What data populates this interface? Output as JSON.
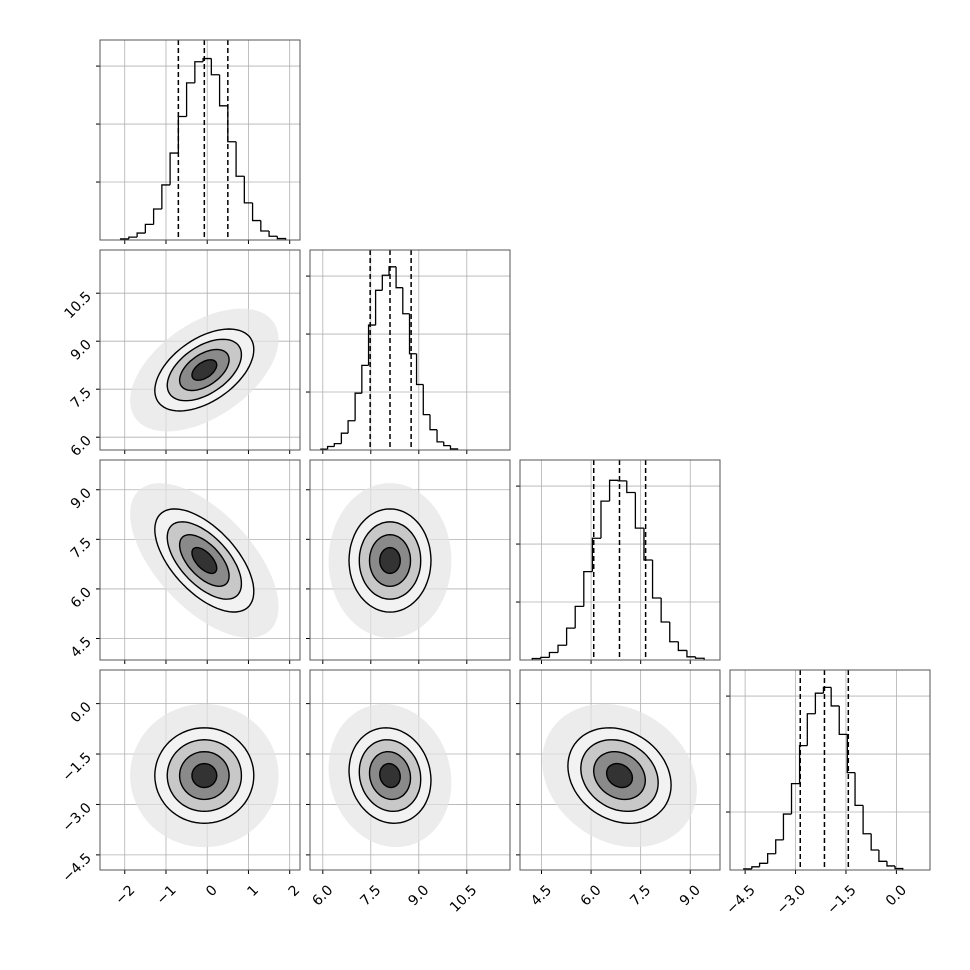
{
  "chart_data": {
    "type": "corner",
    "hist_ylim": [
      0,
      690
    ],
    "hist_yticks": [
      200,
      400,
      600
    ],
    "grid": true,
    "contour_levels": [
      0.5,
      1,
      1.5,
      2
    ],
    "parameters": [
      {
        "lim": [
          -2.6,
          2.25
        ],
        "mean": -0.07,
        "sd": 0.6,
        "ticks": [
          {
            "value": -2,
            "label": "−2"
          },
          {
            "value": -1,
            "label": "−1"
          },
          0,
          1,
          2
        ],
        "quantiles": [
          -0.7,
          -0.07,
          0.5
        ],
        "bins": [
          -2.1,
          -1.9,
          -1.7,
          -1.5,
          -1.3,
          -1.1,
          -0.9,
          -0.7,
          -0.5,
          -0.3,
          -0.1,
          0.1,
          0.3,
          0.5,
          0.7,
          0.9,
          1.1,
          1.3,
          1.5,
          1.7,
          1.9
        ],
        "values": [
          4,
          10,
          24,
          54,
          107,
          190,
          300,
          426,
          542,
          615,
          626,
          570,
          463,
          339,
          220,
          128,
          67,
          31,
          13,
          5
        ]
      },
      {
        "lim": [
          5.6,
          11.85
        ],
        "mean": 8.1,
        "sd": 0.64,
        "ticks": [
          {
            "value": 6,
            "label": "6.0"
          },
          7.5,
          {
            "value": 9,
            "label": "9.0"
          },
          10.5
        ],
        "quantiles": [
          7.48,
          8.1,
          8.76
        ],
        "bins": [
          5.94,
          6.15,
          6.36,
          6.58,
          6.79,
          7.01,
          7.22,
          7.43,
          7.65,
          7.86,
          8.07,
          8.29,
          8.5,
          8.71,
          8.93,
          9.14,
          9.35,
          9.57,
          9.78,
          9.99,
          10.21
        ],
        "values": [
          3,
          12,
          22,
          58,
          101,
          196,
          292,
          431,
          551,
          603,
          632,
          560,
          470,
          332,
          226,
          122,
          70,
          28,
          15,
          4
        ]
      },
      {
        "lim": [
          3.85,
          9.9
        ],
        "mean": 6.86,
        "sd": 0.78,
        "ticks": [
          4.5,
          {
            "value": 6,
            "label": "6.0"
          },
          7.5,
          {
            "value": 9,
            "label": "9.0"
          }
        ],
        "quantiles": [
          6.08,
          6.86,
          7.65
        ],
        "bins": [
          4.22,
          4.48,
          4.74,
          5.0,
          5.26,
          5.52,
          5.78,
          6.04,
          6.3,
          6.56,
          6.82,
          7.08,
          7.34,
          7.6,
          7.86,
          8.12,
          8.38,
          8.64,
          8.9,
          9.16,
          9.42
        ],
        "values": [
          5,
          9,
          26,
          51,
          110,
          185,
          305,
          420,
          548,
          620,
          618,
          578,
          455,
          345,
          214,
          131,
          63,
          33,
          11,
          6
        ]
      },
      {
        "lim": [
          -4.95,
          1.0
        ],
        "mean": -2.14,
        "sd": 0.71,
        "ticks": [
          {
            "value": -4.5,
            "label": "−4.5"
          },
          {
            "value": -3,
            "label": "−3.0"
          },
          {
            "value": -1.5,
            "label": "−1.5"
          },
          {
            "value": 0,
            "label": "0.0"
          }
        ],
        "quantiles": [
          -2.86,
          -2.14,
          -1.43
        ],
        "bins": [
          -4.54,
          -4.3,
          -4.07,
          -3.83,
          -3.59,
          -3.36,
          -3.12,
          -2.88,
          -2.65,
          -2.41,
          -2.17,
          -1.94,
          -1.7,
          -1.46,
          -1.23,
          -0.99,
          -0.75,
          -0.52,
          -0.28,
          -0.04,
          0.19
        ],
        "values": [
          4,
          11,
          23,
          56,
          104,
          193,
          298,
          429,
          539,
          610,
          630,
          566,
          468,
          336,
          223,
          125,
          69,
          30,
          14,
          5
        ]
      }
    ],
    "pairs": [
      {
        "x": 0,
        "y": 1,
        "corr": 0.5
      },
      {
        "x": 0,
        "y": 2,
        "corr": -0.6
      },
      {
        "x": 1,
        "y": 2,
        "corr": 0
      },
      {
        "x": 0,
        "y": 3,
        "corr": 0
      },
      {
        "x": 1,
        "y": 3,
        "corr": -0.1
      },
      {
        "x": 2,
        "y": 3,
        "corr": -0.2
      }
    ]
  }
}
